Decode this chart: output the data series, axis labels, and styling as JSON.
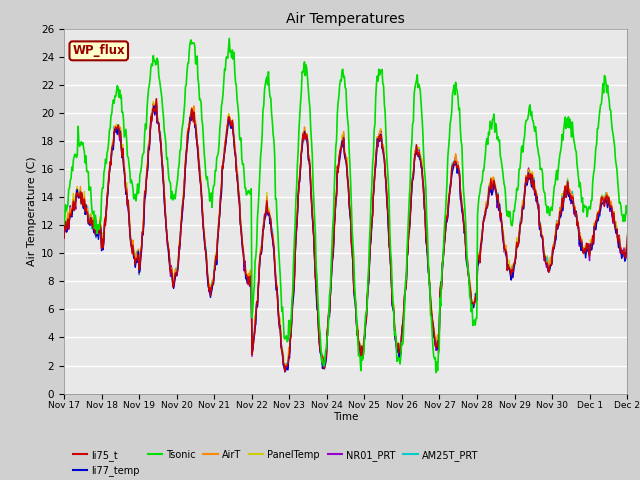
{
  "title": "Air Temperatures",
  "ylabel": "Air Temperature (C)",
  "xlabel": "Time",
  "ylim": [
    0,
    26
  ],
  "yticks": [
    0,
    2,
    4,
    6,
    8,
    10,
    12,
    14,
    16,
    18,
    20,
    22,
    24,
    26
  ],
  "series": {
    "li75_t": {
      "color": "#cc0000",
      "lw": 1.0,
      "zorder": 5
    },
    "li77_temp": {
      "color": "#0000cc",
      "lw": 1.0,
      "zorder": 4
    },
    "Tsonic": {
      "color": "#00dd00",
      "lw": 1.2,
      "zorder": 6
    },
    "AirT": {
      "color": "#ff8800",
      "lw": 1.0,
      "zorder": 3
    },
    "PanelTemp": {
      "color": "#cccc00",
      "lw": 1.0,
      "zorder": 2
    },
    "NR01_PRT": {
      "color": "#9900cc",
      "lw": 1.0,
      "zorder": 3
    },
    "AM25T_PRT": {
      "color": "#00cccc",
      "lw": 1.0,
      "zorder": 3
    }
  },
  "legend_entries": [
    "li75_t",
    "li77_temp",
    "Tsonic",
    "AirT",
    "PanelTemp",
    "NR01_PRT",
    "AM25T_PRT"
  ],
  "legend_colors": [
    "#cc0000",
    "#0000cc",
    "#00dd00",
    "#ff8800",
    "#cccc00",
    "#9900cc",
    "#00cccc"
  ],
  "wp_flux_box": {
    "text": "WP_flux",
    "facecolor": "#ffffcc",
    "edgecolor": "#990000",
    "textcolor": "#990000"
  },
  "x_tick_labels": [
    "Nov 17",
    "Nov 18",
    "Nov 19",
    "Nov 20",
    "Nov 21",
    "Nov 22",
    "Nov 23",
    "Nov 24",
    "Nov 25",
    "Nov 26",
    "Nov 27",
    "Nov 28",
    "Nov 29",
    "Nov 30",
    "Dec 1",
    "Dec 2"
  ],
  "x_tick_positions": [
    0,
    1,
    2,
    3,
    4,
    5,
    6,
    7,
    8,
    9,
    10,
    11,
    12,
    13,
    14,
    15
  ]
}
